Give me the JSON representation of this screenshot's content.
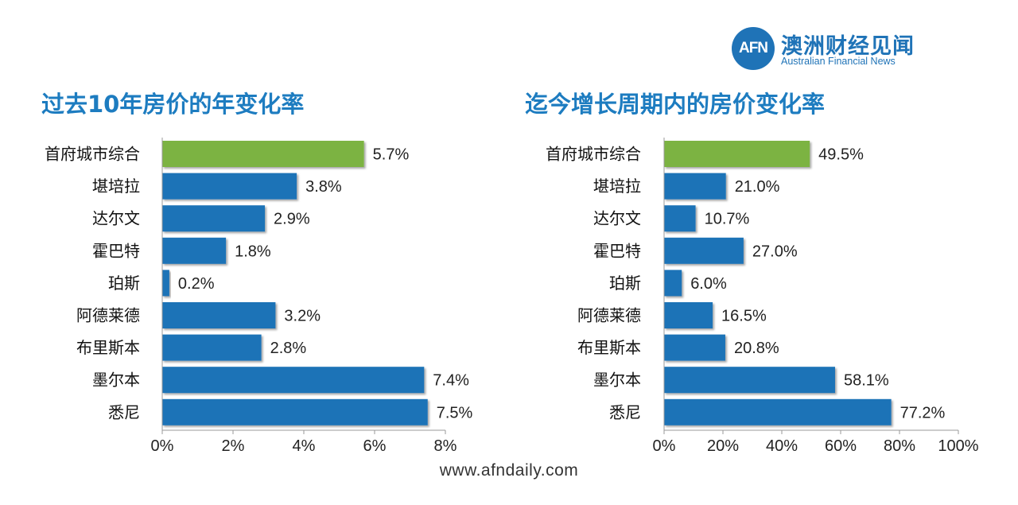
{
  "logo": {
    "mark": "AFN",
    "name_cn": "澳洲财经见闻",
    "name_en": "Australian Financial News",
    "color": "#1f73b7"
  },
  "footer": {
    "url": "www.afndaily.com"
  },
  "colors": {
    "highlight": "#7cb342",
    "bar": "#1f73b7",
    "title": "#1d7cc0"
  },
  "chart_data": [
    {
      "type": "bar",
      "orientation": "horizontal",
      "title": "过去10年房价的年变化率",
      "categories": [
        "首府城市综合",
        "堪培拉",
        "达尔文",
        "霍巴特",
        "珀斯",
        "阿德莱德",
        "布里斯本",
        "墨尔本",
        "悉尼"
      ],
      "values": [
        5.7,
        3.8,
        2.9,
        1.8,
        0.2,
        3.2,
        2.8,
        7.4,
        7.5
      ],
      "value_labels": [
        "5.7%",
        "3.8%",
        "2.9%",
        "1.8%",
        "0.2%",
        "3.2%",
        "2.8%",
        "7.4%",
        "7.5%"
      ],
      "xlim": [
        0,
        8
      ],
      "xticks": [
        0,
        2,
        4,
        6,
        8
      ],
      "xtick_labels": [
        "0%",
        "2%",
        "4%",
        "6%",
        "8%"
      ],
      "highlight_index": 0,
      "grid": false,
      "legend": "none"
    },
    {
      "type": "bar",
      "orientation": "horizontal",
      "title": "迄今增长周期内的房价变化率",
      "categories": [
        "首府城市综合",
        "堪培拉",
        "达尔文",
        "霍巴特",
        "珀斯",
        "阿德莱德",
        "布里斯本",
        "墨尔本",
        "悉尼"
      ],
      "values": [
        49.5,
        21.0,
        10.7,
        27.0,
        6.0,
        16.5,
        20.8,
        58.1,
        77.2
      ],
      "value_labels": [
        "49.5%",
        "21.0%",
        "10.7%",
        "27.0%",
        "6.0%",
        "16.5%",
        "20.8%",
        "58.1%",
        "77.2%"
      ],
      "xlim": [
        0,
        100
      ],
      "xticks": [
        0,
        20,
        40,
        60,
        80,
        100
      ],
      "xtick_labels": [
        "0%",
        "20%",
        "40%",
        "60%",
        "80%",
        "100%"
      ],
      "highlight_index": 0,
      "grid": false,
      "legend": "none"
    }
  ]
}
